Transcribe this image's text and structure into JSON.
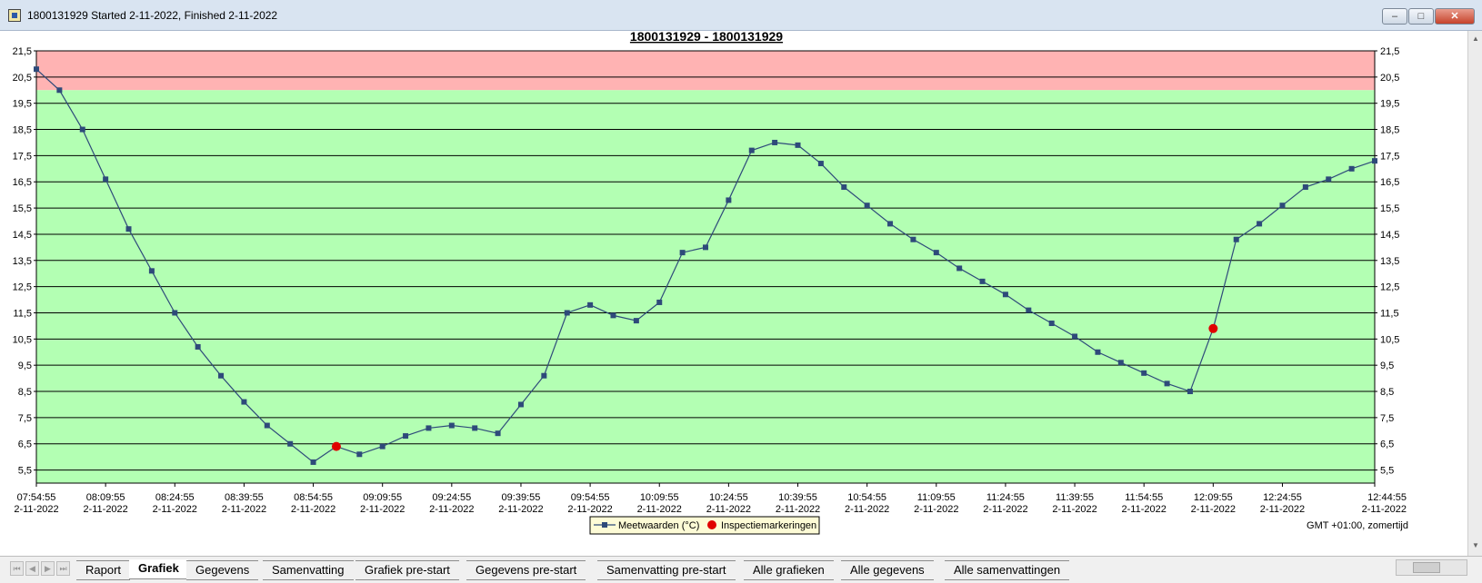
{
  "window": {
    "title": "1800131929 Started 2-11-2022, Finished 2-11-2022",
    "buttons": [
      "minimize",
      "maximize",
      "close"
    ]
  },
  "colors": {
    "alarm_band": "#ffb3b3",
    "ok_band": "#b3ffb3",
    "series": "#2e4a7a",
    "inspection": "#e00000",
    "grid": "#000000"
  },
  "chart_data": {
    "type": "line",
    "title": "1800131929 - 1800131929",
    "ylim": [
      5,
      21.5
    ],
    "y_ticks": [
      "5,5",
      "6,5",
      "7,5",
      "8,5",
      "9,5",
      "10,5",
      "11,5",
      "12,5",
      "13,5",
      "14,5",
      "15,5",
      "16,5",
      "17,5",
      "18,5",
      "19,5",
      "20,5",
      "21,5"
    ],
    "y_tick_values": [
      5.5,
      6.5,
      7.5,
      8.5,
      9.5,
      10.5,
      11.5,
      12.5,
      13.5,
      14.5,
      15.5,
      16.5,
      17.5,
      18.5,
      19.5,
      20.5,
      21.5
    ],
    "bands": [
      {
        "from": 20,
        "to": 21.5,
        "color": "#ffb3b3"
      },
      {
        "from": 5,
        "to": 20,
        "color": "#b3ffb3"
      }
    ],
    "x_range_minutes": [
      0,
      290
    ],
    "x_ticks": [
      {
        "time": "07:54:55",
        "date": "2-11-2022",
        "minute": 0
      },
      {
        "time": "08:09:55",
        "date": "2-11-2022",
        "minute": 15
      },
      {
        "time": "08:24:55",
        "date": "2-11-2022",
        "minute": 30
      },
      {
        "time": "08:39:55",
        "date": "2-11-2022",
        "minute": 45
      },
      {
        "time": "08:54:55",
        "date": "2-11-2022",
        "minute": 60
      },
      {
        "time": "09:09:55",
        "date": "2-11-2022",
        "minute": 75
      },
      {
        "time": "09:24:55",
        "date": "2-11-2022",
        "minute": 90
      },
      {
        "time": "09:39:55",
        "date": "2-11-2022",
        "minute": 105
      },
      {
        "time": "09:54:55",
        "date": "2-11-2022",
        "minute": 120
      },
      {
        "time": "10:09:55",
        "date": "2-11-2022",
        "minute": 135
      },
      {
        "time": "10:24:55",
        "date": "2-11-2022",
        "minute": 150
      },
      {
        "time": "10:39:55",
        "date": "2-11-2022",
        "minute": 165
      },
      {
        "time": "10:54:55",
        "date": "2-11-2022",
        "minute": 180
      },
      {
        "time": "11:09:55",
        "date": "2-11-2022",
        "minute": 195
      },
      {
        "time": "11:24:55",
        "date": "2-11-2022",
        "minute": 210
      },
      {
        "time": "11:39:55",
        "date": "2-11-2022",
        "minute": 225
      },
      {
        "time": "11:54:55",
        "date": "2-11-2022",
        "minute": 240
      },
      {
        "time": "12:09:55",
        "date": "2-11-2022",
        "minute": 255
      },
      {
        "time": "12:24:55",
        "date": "2-11-2022",
        "minute": 270
      },
      {
        "time": "12:44:55",
        "date": "2-11-2022",
        "minute": 290
      }
    ],
    "series": [
      {
        "name": "Meetwaarden (°C)",
        "x_minutes": [
          0,
          5,
          10,
          15,
          20,
          25,
          30,
          35,
          40,
          45,
          50,
          55,
          60,
          65,
          70,
          75,
          80,
          85,
          90,
          95,
          100,
          105,
          110,
          115,
          120,
          125,
          130,
          135,
          140,
          145,
          150,
          155,
          160,
          165,
          170,
          175,
          180,
          185,
          190,
          195,
          200,
          205,
          210,
          215,
          220,
          225,
          230,
          235,
          240,
          245,
          250,
          255,
          260,
          265,
          270,
          275,
          280,
          285,
          290
        ],
        "y": [
          20.8,
          20.0,
          18.5,
          16.6,
          14.7,
          13.1,
          11.5,
          10.2,
          9.1,
          8.1,
          7.2,
          6.5,
          5.8,
          6.4,
          6.1,
          6.4,
          6.8,
          7.1,
          7.2,
          7.1,
          6.9,
          8.0,
          9.1,
          11.5,
          11.8,
          11.4,
          11.2,
          11.9,
          13.8,
          14.0,
          15.8,
          17.7,
          18.0,
          17.9,
          17.2,
          16.3,
          15.6,
          14.9,
          14.3,
          13.8,
          13.2,
          12.7,
          12.2,
          11.6,
          11.1,
          10.6,
          10.0,
          9.6,
          9.2,
          8.8,
          8.5,
          10.9,
          14.3,
          14.9,
          15.6,
          16.3,
          16.6,
          17.0,
          17.3
        ]
      },
      {
        "name": "Inspectiemarkeringen",
        "x_minutes": [
          65,
          255
        ],
        "y": [
          6.4,
          10.9
        ]
      }
    ],
    "legend": {
      "position": "bottom-center",
      "entries": [
        "Meetwaarden (°C)",
        "Inspectiemarkeringen"
      ]
    },
    "grid": true,
    "timezone_note": "GMT +01:00, zomertijd"
  },
  "tabs": [
    {
      "label": "Raport",
      "active": false
    },
    {
      "label": "Grafiek",
      "active": true
    },
    {
      "label": "Gegevens",
      "active": false
    },
    {
      "label": "Samenvatting",
      "active": false
    },
    {
      "label": "Grafiek pre-start",
      "active": false
    },
    {
      "label": "Gegevens pre-start",
      "active": false
    },
    {
      "label": "Samenvatting pre-start",
      "active": false
    },
    {
      "label": "Alle grafieken",
      "active": false
    },
    {
      "label": "Alle gegevens",
      "active": false
    },
    {
      "label": "Alle samenvattingen",
      "active": false
    }
  ]
}
